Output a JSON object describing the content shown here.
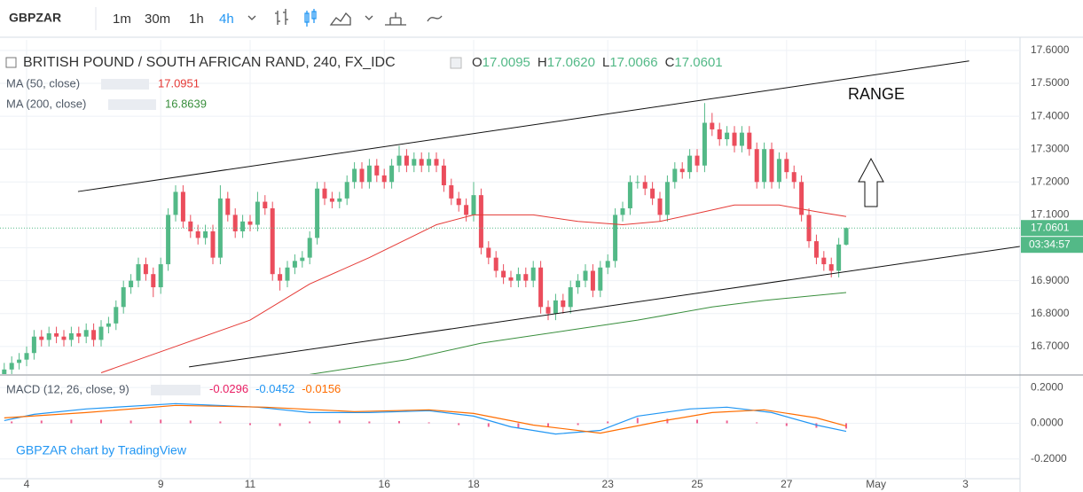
{
  "toolbar": {
    "symbol": "GBPZAR",
    "intervals": [
      "1m",
      "30m",
      "1h",
      "4h"
    ],
    "active": 3
  },
  "watermark": "GBPZAR chart by TradingView",
  "chart_data": [
    {
      "type": "candlestick",
      "title": "BRITISH POUND / SOUTH AFRICAN RAND, 240, FX_IDC",
      "ohlc_letters": [
        "O",
        "H",
        "L",
        "C"
      ],
      "ohlc_labels": [
        "17.0095",
        "17.0620",
        "17.0066",
        "17.0601"
      ],
      "up_color": "#53b987",
      "down_color": "#eb4d5c",
      "x": [
        -3,
        -2,
        -1,
        0,
        1,
        2,
        3,
        4,
        5,
        6,
        7,
        8,
        9,
        10,
        11,
        12,
        13,
        14,
        15,
        16,
        17,
        18,
        19,
        20,
        21,
        22,
        23,
        24,
        25,
        26,
        27,
        28,
        29,
        30,
        31,
        32,
        33,
        34,
        35,
        36,
        37,
        38,
        39,
        40,
        41,
        42,
        43,
        44,
        45,
        46,
        47,
        48,
        49,
        50,
        51,
        52,
        53,
        54,
        55,
        56,
        57,
        58,
        59,
        60,
        61,
        62,
        63,
        64,
        65,
        66,
        67,
        68,
        69,
        70,
        71,
        72,
        73,
        74,
        75,
        76,
        77,
        78,
        79,
        80,
        81,
        82,
        83,
        84,
        85,
        86,
        87,
        88,
        89,
        90,
        91,
        92,
        93,
        94,
        95,
        96,
        97,
        98,
        99,
        100,
        101,
        102,
        103,
        104,
        105,
        106,
        107,
        108,
        109,
        110
      ],
      "open": [
        16.61,
        16.63,
        16.65,
        16.66,
        16.68,
        16.73,
        16.72,
        16.74,
        16.73,
        16.72,
        16.74,
        16.73,
        16.75,
        16.72,
        16.76,
        16.77,
        16.82,
        16.88,
        16.9,
        16.95,
        16.92,
        16.88,
        16.95,
        17.1,
        17.17,
        17.08,
        17.05,
        17.03,
        17.05,
        16.97,
        17.15,
        17.1,
        17.05,
        17.08,
        17.07,
        17.14,
        17.12,
        16.92,
        16.9,
        16.94,
        16.96,
        16.97,
        17.03,
        17.18,
        17.15,
        17.14,
        17.15,
        17.2,
        17.24,
        17.2,
        17.25,
        17.22,
        17.2,
        17.25,
        17.28,
        17.25,
        17.27,
        17.25,
        17.27,
        17.25,
        17.19,
        17.15,
        17.13,
        17.1,
        17.16,
        17.0,
        16.97,
        16.93,
        16.91,
        16.9,
        16.92,
        16.9,
        16.94,
        16.82,
        16.8,
        16.84,
        16.82,
        16.88,
        16.9,
        16.93,
        16.87,
        16.94,
        16.96,
        17.1,
        17.12,
        17.2,
        17.2,
        17.18,
        17.15,
        17.1,
        17.2,
        17.24,
        17.23,
        17.28,
        17.25,
        17.38,
        17.36,
        17.33,
        17.35,
        17.31,
        17.35,
        17.3,
        17.2,
        17.3,
        17.2,
        17.27,
        17.23,
        17.2,
        17.1,
        17.02,
        16.97,
        16.95,
        16.93,
        17.0095
      ],
      "high": [
        16.65,
        16.67,
        16.68,
        16.7,
        16.75,
        16.75,
        16.76,
        16.76,
        16.75,
        16.76,
        16.76,
        16.77,
        16.77,
        16.78,
        16.79,
        16.84,
        16.9,
        16.92,
        16.97,
        16.97,
        16.94,
        16.97,
        17.12,
        17.19,
        17.19,
        17.1,
        17.07,
        17.07,
        17.07,
        17.19,
        17.17,
        17.12,
        17.1,
        17.1,
        17.17,
        17.16,
        17.14,
        16.94,
        16.96,
        16.98,
        16.99,
        17.05,
        17.2,
        17.2,
        17.17,
        17.17,
        17.22,
        17.26,
        17.26,
        17.27,
        17.27,
        17.24,
        17.27,
        17.31,
        17.3,
        17.29,
        17.29,
        17.29,
        17.29,
        17.27,
        17.21,
        17.17,
        17.15,
        17.2,
        17.18,
        17.02,
        16.99,
        16.95,
        16.93,
        16.94,
        16.94,
        16.96,
        16.96,
        16.84,
        16.86,
        16.86,
        16.9,
        16.92,
        16.95,
        16.95,
        16.96,
        16.98,
        17.12,
        17.14,
        17.22,
        17.22,
        17.22,
        17.2,
        17.17,
        17.22,
        17.26,
        17.26,
        17.3,
        17.3,
        17.44,
        17.41,
        17.38,
        17.37,
        17.37,
        17.37,
        17.37,
        17.32,
        17.32,
        17.32,
        17.29,
        17.29,
        17.25,
        17.22,
        17.12,
        17.04,
        16.99,
        16.97,
        17.03,
        17.062
      ],
      "low": [
        16.59,
        16.61,
        16.63,
        16.64,
        16.66,
        16.7,
        16.7,
        16.71,
        16.7,
        16.7,
        16.71,
        16.71,
        16.7,
        16.7,
        16.74,
        16.75,
        16.8,
        16.86,
        16.88,
        16.9,
        16.85,
        16.86,
        16.93,
        17.08,
        17.06,
        17.03,
        17.01,
        17.01,
        16.95,
        16.95,
        17.08,
        17.03,
        17.03,
        17.05,
        17.05,
        17.1,
        16.9,
        16.87,
        16.88,
        16.92,
        16.94,
        16.95,
        17.01,
        17.13,
        17.12,
        17.12,
        17.13,
        17.18,
        17.18,
        17.18,
        17.2,
        17.18,
        17.18,
        17.23,
        17.23,
        17.23,
        17.23,
        17.23,
        17.23,
        17.17,
        17.13,
        17.11,
        17.08,
        17.08,
        16.98,
        16.95,
        16.91,
        16.89,
        16.88,
        16.88,
        16.88,
        16.88,
        16.8,
        16.78,
        16.78,
        16.8,
        16.8,
        16.86,
        16.88,
        16.85,
        16.85,
        16.92,
        16.94,
        17.08,
        17.1,
        17.18,
        17.16,
        17.13,
        17.08,
        17.08,
        17.18,
        17.21,
        17.21,
        17.23,
        17.23,
        17.34,
        17.31,
        17.31,
        17.29,
        17.29,
        17.28,
        17.18,
        17.18,
        17.18,
        17.18,
        17.21,
        17.18,
        17.08,
        17.0,
        16.95,
        16.93,
        16.91,
        16.91,
        17.0066
      ],
      "close": [
        16.63,
        16.65,
        16.66,
        16.68,
        16.73,
        16.72,
        16.74,
        16.73,
        16.72,
        16.74,
        16.73,
        16.75,
        16.72,
        16.76,
        16.77,
        16.82,
        16.88,
        16.9,
        16.95,
        16.92,
        16.88,
        16.95,
        17.1,
        17.17,
        17.08,
        17.05,
        17.03,
        17.05,
        16.97,
        17.15,
        17.1,
        17.05,
        17.08,
        17.07,
        17.14,
        17.12,
        16.92,
        16.9,
        16.94,
        16.96,
        16.97,
        17.03,
        17.18,
        17.15,
        17.14,
        17.15,
        17.2,
        17.24,
        17.2,
        17.25,
        17.22,
        17.2,
        17.25,
        17.28,
        17.25,
        17.27,
        17.25,
        17.27,
        17.25,
        17.19,
        17.15,
        17.13,
        17.1,
        17.16,
        17.0,
        16.97,
        16.93,
        16.91,
        16.9,
        16.92,
        16.9,
        16.94,
        16.82,
        16.8,
        16.84,
        16.82,
        16.88,
        16.9,
        16.93,
        16.87,
        16.94,
        16.96,
        17.1,
        17.12,
        17.2,
        17.2,
        17.18,
        17.15,
        17.1,
        17.2,
        17.24,
        17.23,
        17.28,
        17.25,
        17.38,
        17.36,
        17.33,
        17.35,
        17.31,
        17.35,
        17.3,
        17.2,
        17.3,
        17.2,
        17.27,
        17.23,
        17.2,
        17.1,
        17.02,
        16.97,
        16.95,
        16.93,
        17.01,
        17.0601
      ],
      "series": [
        {
          "name": "MA (50, close)",
          "color": "#e53935",
          "x": [
            10,
            20,
            30,
            38,
            46,
            55,
            60,
            68,
            74,
            80,
            85,
            91,
            95,
            101,
            106,
            110
          ],
          "values": [
            16.62,
            16.7,
            16.78,
            16.89,
            16.97,
            17.07,
            17.1,
            17.1,
            17.08,
            17.07,
            17.08,
            17.11,
            17.13,
            17.13,
            17.11,
            17.0951
          ]
        },
        {
          "name": "MA (200, close)",
          "color": "#388e3c",
          "x": [
            38,
            51,
            61,
            73,
            82,
            92,
            99,
            110
          ],
          "values": [
            16.615,
            16.66,
            16.71,
            16.75,
            16.78,
            16.82,
            16.84,
            16.8639
          ]
        }
      ],
      "lines": [
        {
          "x": [
            6.9,
            126.5
          ],
          "y": [
            17.171,
            17.568
          ]
        },
        {
          "x": [
            21.8,
            133.3
          ],
          "y": [
            16.638,
            17.004
          ]
        }
      ],
      "annotation": "RANGE",
      "countdown": "03:34:57",
      "xlim": [
        -3.57,
        133.33
      ],
      "ylim": [
        16.616,
        17.632
      ],
      "yticks": [
        {
          "value": 16.7,
          "label": "16.7000"
        },
        {
          "value": 16.8,
          "label": "16.8000"
        },
        {
          "value": 16.9,
          "label": "16.9000"
        },
        {
          "value": 17.0,
          "label": "17.0000"
        },
        {
          "value": 17.1,
          "label": "17.1000"
        },
        {
          "value": 17.2,
          "label": "17.2000"
        },
        {
          "value": 17.3,
          "label": "17.3000"
        },
        {
          "value": 17.4,
          "label": "17.4000"
        },
        {
          "value": 17.5,
          "label": "17.5000"
        },
        {
          "value": 17.6,
          "label": "17.6000"
        }
      ],
      "grid": true
    },
    {
      "type": "macd",
      "title": "MACD (12, 26, close, 9)",
      "series": [
        {
          "kind": "histogram",
          "color": "#e91e63",
          "x": [
            -2,
            2,
            6,
            10,
            14,
            18,
            22,
            26,
            30,
            34,
            38,
            42,
            46,
            50,
            54,
            58,
            62,
            66,
            70,
            74,
            78,
            82,
            86,
            90,
            94,
            98,
            102,
            106,
            110
          ],
          "values": [
            0.01,
            0.015,
            0.02,
            0.02,
            0.015,
            0.02,
            0.015,
            0.01,
            -0.01,
            -0.015,
            0.01,
            0.015,
            0.01,
            0.012,
            0.005,
            -0.01,
            -0.02,
            -0.025,
            -0.02,
            -0.01,
            0.01,
            0.03,
            0.025,
            0.02,
            0.015,
            0.005,
            -0.015,
            -0.025,
            -0.0296
          ]
        },
        {
          "kind": "line",
          "color": "#2196f3",
          "x": [
            -3,
            1,
            8,
            20,
            31,
            38,
            46,
            54,
            60,
            65,
            71,
            77,
            82,
            89,
            94,
            100,
            106,
            110
          ],
          "values": [
            0.015,
            0.05,
            0.08,
            0.11,
            0.09,
            0.06,
            0.06,
            0.07,
            0.04,
            -0.02,
            -0.06,
            -0.04,
            0.04,
            0.08,
            0.09,
            0.06,
            -0.01,
            -0.0452
          ]
        },
        {
          "kind": "line",
          "color": "#ff6d00",
          "x": [
            -3,
            8,
            20,
            32,
            44,
            54,
            60,
            68,
            77,
            85,
            92,
            99,
            106,
            110
          ],
          "values": [
            0.03,
            0.06,
            0.1,
            0.09,
            0.065,
            0.075,
            0.055,
            -0.01,
            -0.055,
            0.01,
            0.06,
            0.075,
            0.03,
            -0.0156
          ]
        }
      ],
      "xlim": [
        -3.57,
        133.33
      ],
      "ylim": [
        -0.31,
        0.265
      ],
      "yticks": [
        {
          "value": -0.2,
          "label": "-0.2000"
        },
        {
          "value": 0,
          "label": "0.0000"
        },
        {
          "value": 0.2,
          "label": "0.2000"
        }
      ],
      "xticks": [
        {
          "value": 0,
          "label": "4"
        },
        {
          "value": 18,
          "label": "9"
        },
        {
          "value": 30,
          "label": "11"
        },
        {
          "value": 48,
          "label": "16"
        },
        {
          "value": 60,
          "label": "18"
        },
        {
          "value": 78,
          "label": "23"
        },
        {
          "value": 90,
          "label": "25"
        },
        {
          "value": 102,
          "label": "27"
        },
        {
          "value": 114,
          "label": "May"
        },
        {
          "value": 126,
          "label": "3"
        }
      ],
      "grid": true
    }
  ]
}
